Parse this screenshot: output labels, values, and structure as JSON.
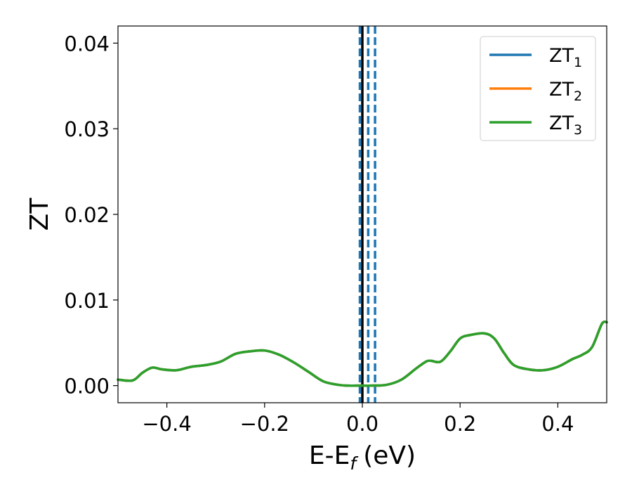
{
  "chart_data": {
    "type": "line",
    "xlabel": "E-E",
    "xlabel_subscript": "f",
    "xlabel_unit": "(eV)",
    "ylabel": "ZT",
    "xlim": [
      -0.5,
      0.5
    ],
    "ylim": [
      -0.002,
      0.042
    ],
    "x_ticks": [
      -0.4,
      -0.2,
      0.0,
      0.2,
      0.4
    ],
    "x_tick_labels": [
      "−0.4",
      "−0.2",
      "0.0",
      "0.2",
      "0.4"
    ],
    "y_ticks": [
      0.0,
      0.01,
      0.02,
      0.03,
      0.04
    ],
    "y_tick_labels": [
      "0.00",
      "0.01",
      "0.02",
      "0.03",
      "0.04"
    ],
    "grid": false,
    "legend_position": "top-right",
    "x": [
      -0.5,
      -0.47,
      -0.45,
      -0.43,
      -0.41,
      -0.38,
      -0.35,
      -0.32,
      -0.29,
      -0.26,
      -0.23,
      -0.2,
      -0.17,
      -0.14,
      -0.11,
      -0.08,
      -0.05,
      -0.03,
      0.0,
      0.02,
      0.05,
      0.08,
      0.11,
      0.13,
      0.14,
      0.16,
      0.18,
      0.2,
      0.22,
      0.25,
      0.27,
      0.29,
      0.31,
      0.34,
      0.37,
      0.4,
      0.43,
      0.45,
      0.47,
      0.49,
      0.5
    ],
    "series": [
      {
        "name": "ZT",
        "subscript": "1",
        "color": "#1f77b4",
        "values": [
          0.0007,
          0.0006,
          0.0015,
          0.0021,
          0.0019,
          0.0018,
          0.0022,
          0.0024,
          0.0028,
          0.0037,
          0.004,
          0.0041,
          0.0036,
          0.0027,
          0.0016,
          0.0005,
          0.0001,
          0.0,
          0.0,
          0.0,
          0.0001,
          0.0007,
          0.002,
          0.0028,
          0.0029,
          0.0028,
          0.004,
          0.0055,
          0.0059,
          0.0061,
          0.0055,
          0.0038,
          0.0024,
          0.0019,
          0.0018,
          0.0022,
          0.0031,
          0.0036,
          0.0045,
          0.0072,
          0.0074
        ]
      },
      {
        "name": "ZT",
        "subscript": "2",
        "color": "#ff7f0e",
        "values": [
          0.0007,
          0.0006,
          0.0015,
          0.0021,
          0.0019,
          0.0018,
          0.0022,
          0.0024,
          0.0028,
          0.0037,
          0.004,
          0.0041,
          0.0036,
          0.0027,
          0.0016,
          0.0005,
          0.0001,
          0.0,
          0.0,
          0.0,
          0.0001,
          0.0007,
          0.002,
          0.0028,
          0.0029,
          0.0028,
          0.004,
          0.0055,
          0.0059,
          0.0061,
          0.0055,
          0.0038,
          0.0024,
          0.0019,
          0.0018,
          0.0022,
          0.0031,
          0.0036,
          0.0045,
          0.0072,
          0.0074
        ]
      },
      {
        "name": "ZT",
        "subscript": "3",
        "color": "#2ca02c",
        "values": [
          0.0007,
          0.0006,
          0.0015,
          0.0021,
          0.0019,
          0.0018,
          0.0022,
          0.0024,
          0.0028,
          0.0037,
          0.004,
          0.0041,
          0.0036,
          0.0027,
          0.0016,
          0.0005,
          0.0001,
          0.0,
          0.0,
          0.0,
          0.0001,
          0.0007,
          0.002,
          0.0028,
          0.0029,
          0.0028,
          0.004,
          0.0055,
          0.0059,
          0.0061,
          0.0055,
          0.0038,
          0.0024,
          0.0019,
          0.0018,
          0.0022,
          0.0031,
          0.0036,
          0.0045,
          0.0072,
          0.0074
        ]
      }
    ],
    "vertical_lines": [
      {
        "x": 0.0,
        "style": "solid",
        "color": "#000000"
      },
      {
        "x": -0.005,
        "style": "dashed",
        "color": "#1f77b4"
      },
      {
        "x": 0.012,
        "style": "dashed",
        "color": "#1f77b4"
      },
      {
        "x": 0.026,
        "style": "dashed",
        "color": "#1f77b4"
      }
    ]
  }
}
